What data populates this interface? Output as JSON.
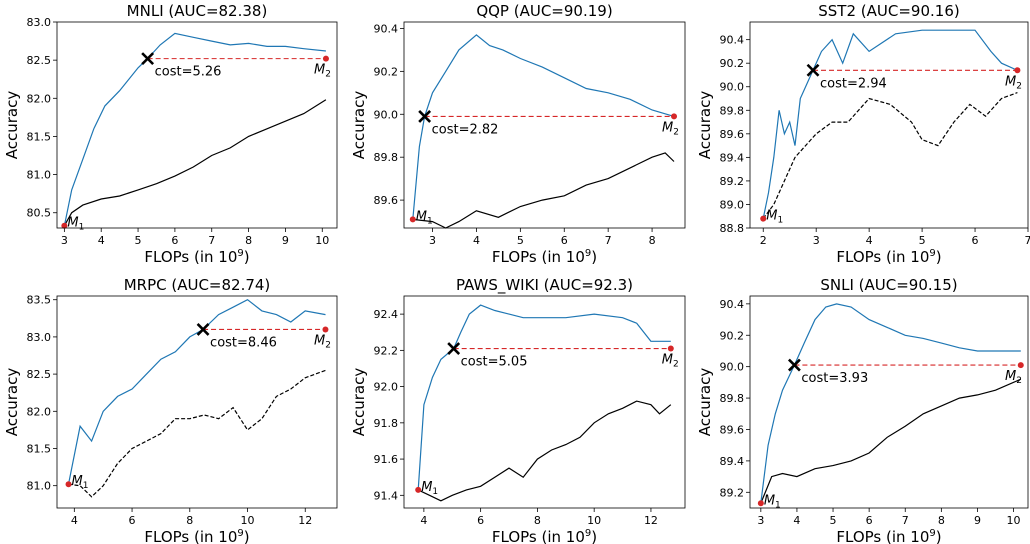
{
  "colors": {
    "curve_top": "#1f77b4",
    "curve_bottom": "#000000",
    "marker": "#d62728",
    "cost_line": "#d62728"
  },
  "chart_data": [
    {
      "type": "line",
      "title": "MNLI (AUC=82.38)",
      "xlabel": "FLOPs (in 10",
      "xlabel_sup": "9",
      "xlabel_end": ")",
      "ylabel": "Accuracy",
      "xlim": [
        2.8,
        10.4
      ],
      "ylim": [
        80.3,
        83.0
      ],
      "xticks": [
        3,
        4,
        5,
        6,
        7,
        8,
        9,
        10
      ],
      "yticks": [
        80.5,
        81.0,
        81.5,
        82.0,
        82.5,
        83.0
      ],
      "ytick_labels": [
        "80.5",
        "81.0",
        "81.5",
        "82.0",
        "82.5",
        "83.0"
      ],
      "m1": {
        "x": 3.0,
        "y": 80.33,
        "label": "M",
        "sub": "1"
      },
      "m2": {
        "x": 10.1,
        "y": 82.52,
        "label": "M",
        "sub": "2"
      },
      "cost": {
        "x": 5.26,
        "y": 82.52,
        "label": "cost=5.26"
      },
      "bottom_dashed": false,
      "series_top": {
        "x": [
          3.0,
          3.2,
          3.5,
          3.8,
          4.1,
          4.5,
          5.0,
          5.26,
          5.6,
          6.0,
          6.5,
          7.0,
          7.5,
          8.0,
          8.5,
          9.0,
          9.5,
          10.1
        ],
        "y": [
          80.33,
          80.8,
          81.2,
          81.6,
          81.9,
          82.1,
          82.4,
          82.52,
          82.7,
          82.85,
          82.8,
          82.75,
          82.7,
          82.72,
          82.68,
          82.68,
          82.65,
          82.62
        ]
      },
      "series_bottom": {
        "x": [
          3.0,
          3.2,
          3.5,
          4.0,
          4.5,
          5.0,
          5.5,
          6.0,
          6.5,
          7.0,
          7.5,
          8.0,
          8.5,
          9.0,
          9.5,
          10.1
        ],
        "y": [
          80.33,
          80.5,
          80.6,
          80.68,
          80.72,
          80.8,
          80.88,
          80.98,
          81.1,
          81.25,
          81.35,
          81.5,
          81.6,
          81.7,
          81.8,
          81.98
        ]
      }
    },
    {
      "type": "line",
      "title": "QQP (AUC=90.19)",
      "xlabel": "FLOPs (in 10",
      "xlabel_sup": "9",
      "xlabel_end": ")",
      "ylabel": "Accuracy",
      "xlim": [
        2.35,
        8.75
      ],
      "ylim": [
        89.47,
        90.43
      ],
      "xticks": [
        3,
        4,
        5,
        6,
        7,
        8
      ],
      "yticks": [
        89.6,
        89.8,
        90.0,
        90.2,
        90.4
      ],
      "ytick_labels": [
        "89.6",
        "89.8",
        "90.0",
        "90.2",
        "90.4"
      ],
      "m1": {
        "x": 2.55,
        "y": 89.51,
        "label": "M",
        "sub": "1"
      },
      "m2": {
        "x": 8.5,
        "y": 89.99,
        "label": "M",
        "sub": "2"
      },
      "cost": {
        "x": 2.82,
        "y": 89.99,
        "label": "cost=2.82"
      },
      "bottom_dashed": false,
      "series_top": {
        "x": [
          2.55,
          2.7,
          2.82,
          3.0,
          3.3,
          3.6,
          4.0,
          4.3,
          4.6,
          5.0,
          5.5,
          6.0,
          6.5,
          7.0,
          7.5,
          8.0,
          8.5
        ],
        "y": [
          89.51,
          89.85,
          89.99,
          90.1,
          90.2,
          90.3,
          90.37,
          90.32,
          90.3,
          90.26,
          90.22,
          90.17,
          90.12,
          90.1,
          90.07,
          90.02,
          89.99
        ]
      },
      "series_bottom": {
        "x": [
          2.55,
          3.0,
          3.3,
          3.6,
          4.0,
          4.5,
          5.0,
          5.5,
          6.0,
          6.5,
          7.0,
          7.5,
          8.0,
          8.3,
          8.5
        ],
        "y": [
          89.51,
          89.5,
          89.47,
          89.5,
          89.55,
          89.52,
          89.57,
          89.6,
          89.62,
          89.67,
          89.7,
          89.75,
          89.8,
          89.82,
          89.78
        ]
      }
    },
    {
      "type": "line",
      "title": "SST2 (AUC=90.16)",
      "xlabel": "FLOPs (in 10",
      "xlabel_sup": "9",
      "xlabel_end": ")",
      "ylabel": "Accuracy",
      "xlim": [
        1.75,
        7.0
      ],
      "ylim": [
        88.8,
        90.55
      ],
      "xticks": [
        2,
        3,
        4,
        5,
        6,
        7
      ],
      "yticks": [
        88.8,
        89.0,
        89.2,
        89.4,
        89.6,
        89.8,
        90.0,
        90.2,
        90.4
      ],
      "ytick_labels": [
        "88.8",
        "89.0",
        "89.2",
        "89.4",
        "89.6",
        "89.8",
        "90.0",
        "90.2",
        "90.4"
      ],
      "m1": {
        "x": 2.0,
        "y": 88.88,
        "label": "M",
        "sub": "1"
      },
      "m2": {
        "x": 6.8,
        "y": 90.14,
        "label": "M",
        "sub": "2"
      },
      "cost": {
        "x": 2.94,
        "y": 90.14,
        "label": "cost=2.94"
      },
      "bottom_dashed": true,
      "series_top": {
        "x": [
          2.0,
          2.1,
          2.2,
          2.3,
          2.4,
          2.5,
          2.6,
          2.7,
          2.8,
          2.94,
          3.1,
          3.3,
          3.5,
          3.7,
          4.0,
          4.5,
          5.0,
          5.5,
          6.0,
          6.3,
          6.5,
          6.8
        ],
        "y": [
          88.88,
          89.1,
          89.4,
          89.8,
          89.6,
          89.7,
          89.5,
          89.9,
          90.0,
          90.14,
          90.3,
          90.4,
          90.2,
          90.45,
          90.3,
          90.45,
          90.48,
          90.48,
          90.48,
          90.3,
          90.2,
          90.14
        ]
      },
      "series_bottom": {
        "x": [
          2.0,
          2.2,
          2.4,
          2.6,
          2.8,
          3.0,
          3.3,
          3.6,
          4.0,
          4.4,
          4.8,
          5.0,
          5.3,
          5.6,
          5.9,
          6.2,
          6.5,
          6.8
        ],
        "y": [
          88.88,
          89.0,
          89.2,
          89.4,
          89.5,
          89.6,
          89.7,
          89.7,
          89.9,
          89.85,
          89.7,
          89.55,
          89.5,
          89.7,
          89.85,
          89.75,
          89.9,
          89.95
        ]
      }
    },
    {
      "type": "line",
      "title": "MRPC (AUC=82.74)",
      "xlabel": "FLOPs (in 10",
      "xlabel_sup": "9",
      "xlabel_end": ")",
      "ylabel": "Accuracy",
      "xlim": [
        3.4,
        13.1
      ],
      "ylim": [
        80.7,
        83.55
      ],
      "xticks": [
        4,
        6,
        8,
        10,
        12
      ],
      "yticks": [
        81.0,
        81.5,
        82.0,
        82.5,
        83.0,
        83.5
      ],
      "ytick_labels": [
        "81.0",
        "81.5",
        "82.0",
        "82.5",
        "83.0",
        "83.5"
      ],
      "m1": {
        "x": 3.8,
        "y": 81.02,
        "label": "M",
        "sub": "1"
      },
      "m2": {
        "x": 12.7,
        "y": 83.1,
        "label": "M",
        "sub": "2"
      },
      "cost": {
        "x": 8.46,
        "y": 83.1,
        "label": "cost=8.46"
      },
      "bottom_dashed": true,
      "series_top": {
        "x": [
          3.8,
          4.2,
          4.6,
          5.0,
          5.5,
          6.0,
          6.5,
          7.0,
          7.5,
          8.0,
          8.46,
          9.0,
          9.5,
          10.0,
          10.5,
          11.0,
          11.5,
          12.0,
          12.7
        ],
        "y": [
          81.02,
          81.8,
          81.6,
          82.0,
          82.2,
          82.3,
          82.5,
          82.7,
          82.8,
          83.0,
          83.1,
          83.3,
          83.4,
          83.5,
          83.35,
          83.3,
          83.2,
          83.35,
          83.3
        ]
      },
      "series_bottom": {
        "x": [
          3.8,
          4.2,
          4.6,
          5.0,
          5.5,
          6.0,
          6.5,
          7.0,
          7.5,
          8.0,
          8.5,
          9.0,
          9.5,
          10.0,
          10.5,
          11.0,
          11.5,
          12.0,
          12.7
        ],
        "y": [
          81.02,
          81.0,
          80.85,
          81.0,
          81.3,
          81.5,
          81.6,
          81.7,
          81.9,
          81.9,
          81.95,
          81.9,
          82.05,
          81.75,
          81.9,
          82.2,
          82.3,
          82.45,
          82.55
        ]
      }
    },
    {
      "type": "line",
      "title": "PAWS_WIKI (AUC=92.3)",
      "xlabel": "FLOPs (in 10",
      "xlabel_sup": "9",
      "xlabel_end": ")",
      "ylabel": "Accuracy",
      "xlim": [
        3.3,
        13.2
      ],
      "ylim": [
        91.33,
        92.5
      ],
      "xticks": [
        4,
        6,
        8,
        10,
        12
      ],
      "yticks": [
        91.4,
        91.6,
        91.8,
        92.0,
        92.2,
        92.4
      ],
      "ytick_labels": [
        "91.4",
        "91.6",
        "91.8",
        "92.0",
        "92.2",
        "92.4"
      ],
      "m1": {
        "x": 3.8,
        "y": 91.43,
        "label": "M",
        "sub": "1"
      },
      "m2": {
        "x": 12.7,
        "y": 92.21,
        "label": "M",
        "sub": "2"
      },
      "cost": {
        "x": 5.05,
        "y": 92.21,
        "label": "cost=5.05"
      },
      "bottom_dashed": false,
      "series_top": {
        "x": [
          3.8,
          4.0,
          4.3,
          4.6,
          5.05,
          5.3,
          5.6,
          6.0,
          6.5,
          7.0,
          7.5,
          8.0,
          9.0,
          10.0,
          11.0,
          11.5,
          12.0,
          12.7
        ],
        "y": [
          91.43,
          91.9,
          92.05,
          92.15,
          92.21,
          92.3,
          92.4,
          92.45,
          92.42,
          92.4,
          92.38,
          92.38,
          92.38,
          92.4,
          92.38,
          92.35,
          92.25,
          92.25
        ]
      },
      "series_bottom": {
        "x": [
          3.8,
          4.2,
          4.6,
          5.0,
          5.5,
          6.0,
          6.5,
          7.0,
          7.5,
          8.0,
          8.5,
          9.0,
          9.5,
          10.0,
          10.5,
          11.0,
          11.5,
          12.0,
          12.3,
          12.7
        ],
        "y": [
          91.43,
          91.4,
          91.37,
          91.4,
          91.43,
          91.45,
          91.5,
          91.55,
          91.5,
          91.6,
          91.65,
          91.68,
          91.72,
          91.8,
          91.85,
          91.88,
          91.92,
          91.9,
          91.85,
          91.9
        ]
      }
    },
    {
      "type": "line",
      "title": "SNLI (AUC=90.15)",
      "xlabel": "FLOPs (in 10",
      "xlabel_sup": "9",
      "xlabel_end": ")",
      "ylabel": "Accuracy",
      "xlim": [
        2.7,
        10.4
      ],
      "ylim": [
        89.1,
        90.45
      ],
      "xticks": [
        3,
        4,
        5,
        6,
        7,
        8,
        9,
        10
      ],
      "yticks": [
        89.2,
        89.4,
        89.6,
        89.8,
        90.0,
        90.2,
        90.4
      ],
      "ytick_labels": [
        "89.2",
        "89.4",
        "89.6",
        "89.8",
        "90.0",
        "90.2",
        "90.4"
      ],
      "m1": {
        "x": 3.0,
        "y": 89.13,
        "label": "M",
        "sub": "1"
      },
      "m2": {
        "x": 10.2,
        "y": 90.01,
        "label": "M",
        "sub": "2"
      },
      "cost": {
        "x": 3.93,
        "y": 90.01,
        "label": "cost=3.93"
      },
      "bottom_dashed": false,
      "series_top": {
        "x": [
          3.0,
          3.2,
          3.4,
          3.6,
          3.93,
          4.2,
          4.5,
          4.8,
          5.1,
          5.5,
          6.0,
          6.5,
          7.0,
          7.5,
          8.0,
          8.5,
          9.0,
          9.5,
          10.2
        ],
        "y": [
          89.13,
          89.5,
          89.7,
          89.85,
          90.01,
          90.15,
          90.3,
          90.38,
          90.4,
          90.38,
          90.3,
          90.25,
          90.2,
          90.18,
          90.15,
          90.12,
          90.1,
          90.1,
          90.1
        ]
      },
      "series_bottom": {
        "x": [
          3.0,
          3.3,
          3.6,
          4.0,
          4.5,
          5.0,
          5.5,
          6.0,
          6.5,
          7.0,
          7.5,
          8.0,
          8.5,
          9.0,
          9.5,
          10.2
        ],
        "y": [
          89.13,
          89.3,
          89.32,
          89.3,
          89.35,
          89.37,
          89.4,
          89.45,
          89.55,
          89.62,
          89.7,
          89.75,
          89.8,
          89.82,
          89.85,
          89.92
        ]
      }
    }
  ]
}
